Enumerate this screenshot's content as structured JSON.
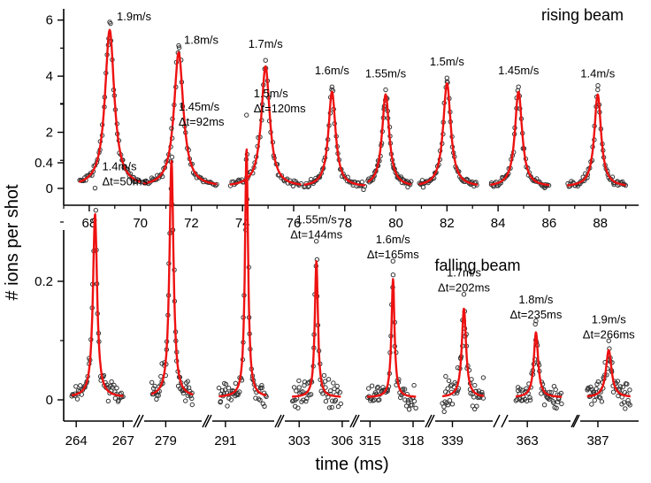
{
  "chart_data": [
    {
      "type": "scatter",
      "title": "rising beam",
      "ylabel": "# ions per shot",
      "xlabel": "time (ms)",
      "xlim": [
        67,
        89.5
      ],
      "ylim": [
        -0.6,
        6.4
      ],
      "x_ticks": [
        "68",
        "70",
        "72",
        "74",
        "76",
        "78",
        "80",
        "82",
        "84",
        "86",
        "88"
      ],
      "y_ticks": [
        "0",
        "2",
        "4",
        "6"
      ],
      "series": [
        {
          "label": "1.9m/s",
          "segment": [
            67.6,
            70.0
          ],
          "center": 68.8,
          "peak": 5.6,
          "hwhm": 0.22
        },
        {
          "label": "1.8m/s",
          "segment": [
            70.1,
            73.0
          ],
          "center": 71.5,
          "peak": 4.8,
          "hwhm": 0.22
        },
        {
          "label": "1.7m/s",
          "segment": [
            73.5,
            76.3
          ],
          "center": 74.9,
          "peak": 4.3,
          "hwhm": 0.2
        },
        {
          "label": "1.6m/s",
          "segment": [
            76.4,
            78.8
          ],
          "center": 77.5,
          "peak": 3.4,
          "hwhm": 0.17
        },
        {
          "label": "1.55m/s",
          "segment": [
            78.9,
            80.6
          ],
          "center": 79.6,
          "peak": 3.3,
          "hwhm": 0.17
        },
        {
          "label": "1.5m/s",
          "segment": [
            80.9,
            83.2
          ],
          "center": 82.0,
          "peak": 3.7,
          "hwhm": 0.18
        },
        {
          "label": "1.45m/s",
          "segment": [
            83.7,
            86.0
          ],
          "center": 84.8,
          "peak": 3.4,
          "hwhm": 0.17
        },
        {
          "label": "1.4m/s",
          "segment": [
            86.7,
            89.0
          ],
          "center": 87.9,
          "peak": 3.3,
          "hwhm": 0.16
        }
      ]
    },
    {
      "type": "scatter",
      "title": "falling beam",
      "ylabel": "# ions per shot",
      "xlabel": "time (ms)",
      "x_break_ticks": [
        "264",
        "267",
        "279",
        "291",
        "303",
        "306",
        "315",
        "318",
        "339",
        "363",
        "387"
      ],
      "y_ticks": [
        "0",
        "0.2",
        "0.4"
      ],
      "ylim": [
        -0.05,
        0.5
      ],
      "series": [
        {
          "label": "1.4m/s",
          "dt": "Δt=50ms",
          "center": 265.2,
          "peak": 0.31,
          "hwhm": 0.16
        },
        {
          "label": "1.45m/s",
          "dt": "Δt=92ms",
          "center": 279.4,
          "peak": 0.4,
          "hwhm": 0.17
        },
        {
          "label": "1.5m/s",
          "dt": "Δt=120ms",
          "center": 292.6,
          "peak": 0.42,
          "hwhm": 0.14
        },
        {
          "label": "1.55m/s",
          "dt": "Δt=144ms",
          "center": 304.2,
          "peak": 0.23,
          "hwhm": 0.13
        },
        {
          "label": "1.6m/s",
          "dt": "Δt=165ms",
          "center": 316.6,
          "peak": 0.2,
          "hwhm": 0.13
        },
        {
          "label": "1.7m/s",
          "dt": "Δt=202ms",
          "center": 339.8,
          "peak": 0.15,
          "hwhm": 0.18
        },
        {
          "label": "1.8m/s",
          "dt": "Δt=235ms",
          "center": 363.6,
          "peak": 0.11,
          "hwhm": 0.18
        },
        {
          "label": "1.9m/s",
          "dt": "Δt=266ms",
          "center": 387.8,
          "peak": 0.08,
          "hwhm": 0.25
        }
      ]
    }
  ],
  "colors": {
    "fit": "#ee1111",
    "points": "#333333",
    "axis": "#000000"
  }
}
